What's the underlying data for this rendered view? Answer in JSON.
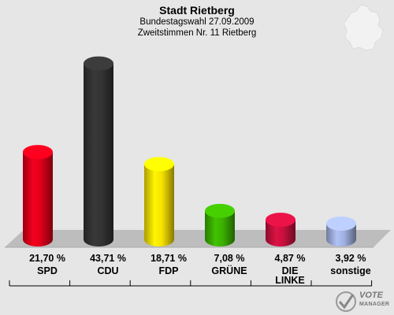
{
  "header": {
    "title": "Stadt Rietberg",
    "subtitle1": "Bundestagswahl 27.09.2009",
    "subtitle2": "Zweitstimmen Nr. 11 Rietberg"
  },
  "logo": {
    "line1": "VOTE",
    "line2": "MANAGER"
  },
  "chart_data": {
    "type": "bar",
    "categories": [
      "SPD",
      "CDU",
      "FDP",
      "GRÜNE",
      "DIE LINKE",
      "sonstige"
    ],
    "values": [
      21.7,
      43.71,
      18.71,
      7.08,
      4.87,
      3.92
    ],
    "value_labels": [
      "21,70 %",
      "43,71 %",
      "18,71 %",
      "7,08 %",
      "4,87 %",
      "3,92 %"
    ],
    "colors": [
      "#e0001a",
      "#333333",
      "#f5e000",
      "#3bb000",
      "#c8103e",
      "#a0b0e0"
    ],
    "ylim": [
      0,
      45
    ],
    "grid": false
  }
}
